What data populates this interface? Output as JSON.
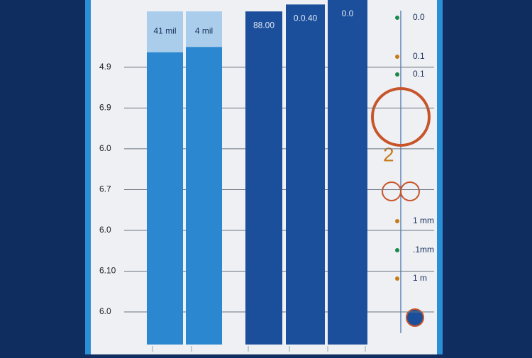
{
  "chart_data": {
    "type": "bar",
    "categories": [
      null,
      null,
      null,
      null,
      null
    ],
    "series": [
      {
        "colors": [
          "#2a87d0",
          "#2a87d0",
          "#1c4f9b",
          "#1c4f9b",
          "#1c4f9b"
        ],
        "values": [
          7.17,
          7.3,
          8.17,
          8.34,
          8.65
        ]
      },
      {
        "color": "#a9cdea",
        "values": [
          1.0,
          0.87,
          null,
          null,
          null
        ]
      }
    ],
    "bar_labels": [
      "41 mil",
      "4 mil",
      "88.00",
      "0.0.40",
      "0.0"
    ],
    "side_labels": [
      "0.0",
      "0.1",
      "0.1",
      "1 mm",
      ".1mm",
      "1 m"
    ],
    "ylim": [
      0.2,
      8.65
    ],
    "yticks": [
      {
        "value": 7,
        "label": "4.9"
      },
      {
        "value": 6,
        "label": "6.9"
      },
      {
        "value": 5,
        "label": "6.0"
      },
      {
        "value": 4,
        "label": "6.7"
      },
      {
        "value": 3,
        "label": "6.0"
      },
      {
        "value": 2,
        "label": "6.10"
      },
      {
        "value": 1,
        "label": "6.0"
      }
    ],
    "grid": true
  }
}
